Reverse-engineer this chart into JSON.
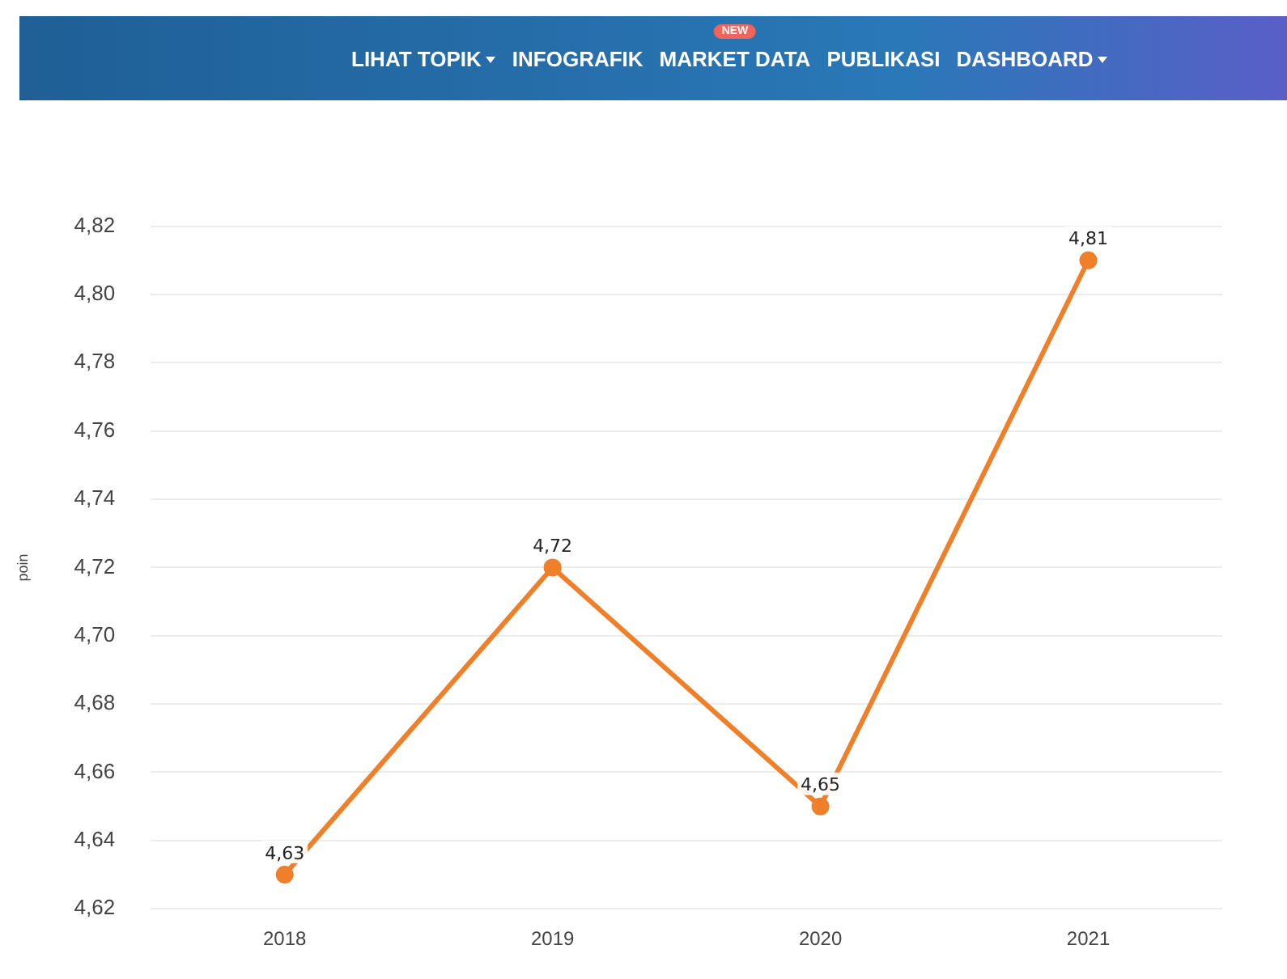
{
  "chart_data": {
    "type": "line",
    "ylabel": "poin",
    "annotations": [
      "LIHAT TOPIK",
      "INFOGRAFIK",
      "NEW",
      "MARKET DATA",
      "PUBLIKASI",
      "DASHBOARD"
    ],
    "categories": [
      "2018",
      "2019",
      "2020",
      "2021"
    ],
    "series": [
      {
        "color": "#f07f2a",
        "values": [
          4.63,
          4.72,
          4.65,
          4.81
        ],
        "value_labels": [
          "4,63",
          "4,72",
          "4,65",
          "4,81"
        ]
      }
    ],
    "ylim": [
      4.62,
      4.82
    ],
    "yticks": [
      {
        "value": 4.62,
        "label": "4,62"
      },
      {
        "value": 4.64,
        "label": "4,64"
      },
      {
        "value": 4.66,
        "label": "4,66"
      },
      {
        "value": 4.68,
        "label": "4,68"
      },
      {
        "value": 4.7,
        "label": "4,70"
      },
      {
        "value": 4.72,
        "label": "4,72"
      },
      {
        "value": 4.74,
        "label": "4,74"
      },
      {
        "value": 4.76,
        "label": "4,76"
      },
      {
        "value": 4.78,
        "label": "4,78"
      },
      {
        "value": 4.8,
        "label": "4,80"
      },
      {
        "value": 4.82,
        "label": "4,82"
      }
    ],
    "grid": "y",
    "marker": "circle",
    "line_style": "solid",
    "legend": false
  }
}
